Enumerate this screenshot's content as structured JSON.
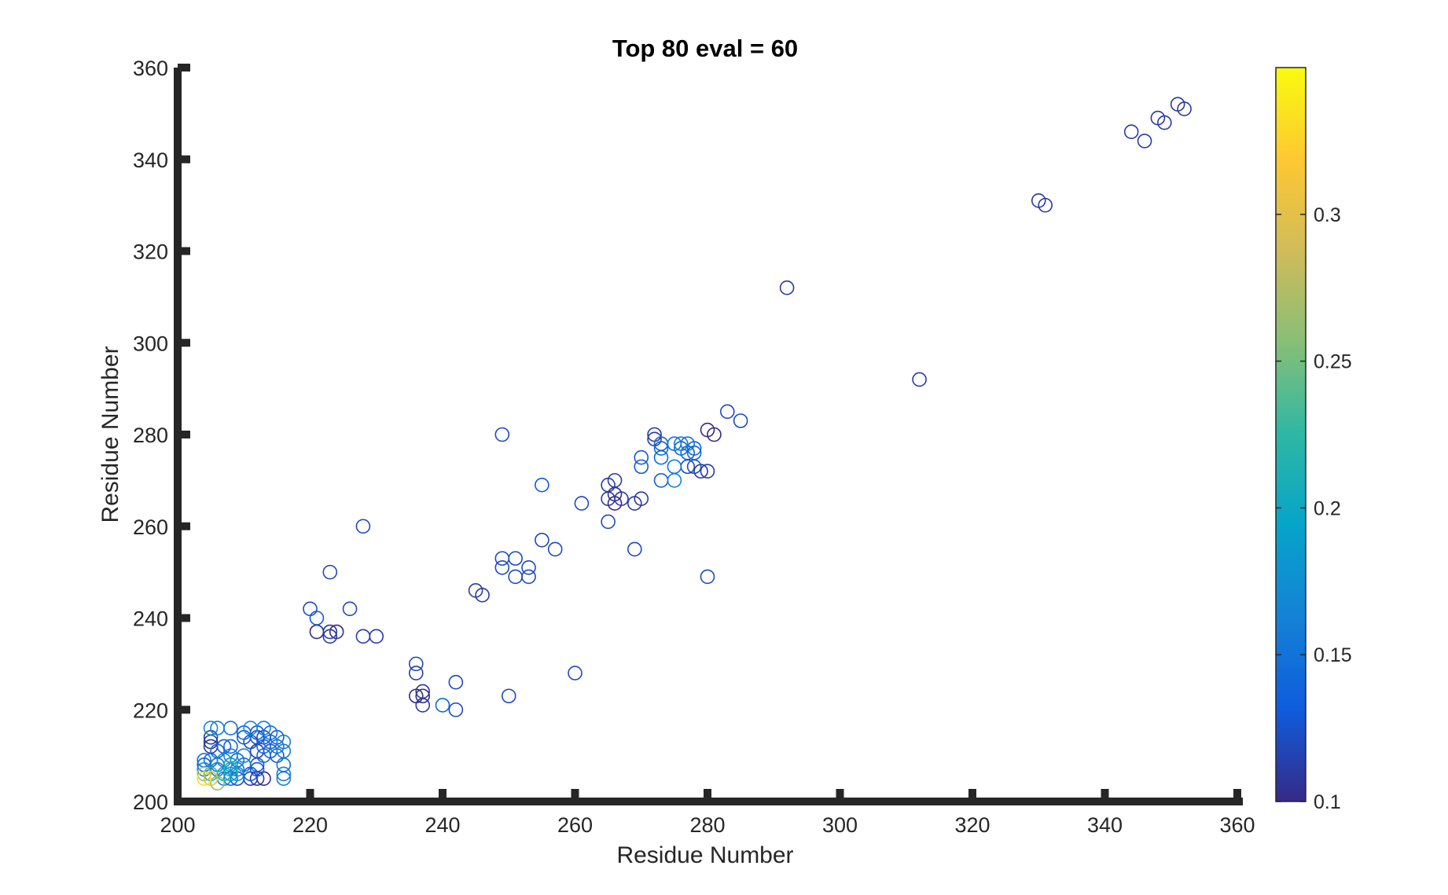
{
  "chart_data": {
    "type": "scatter",
    "title": "Top 80 eval = 60",
    "xlabel": "Residue Number",
    "ylabel": "Residue Number",
    "xlim": [
      200,
      360
    ],
    "ylim": [
      200,
      360
    ],
    "xticks": [
      200,
      220,
      240,
      260,
      280,
      300,
      320,
      340,
      360
    ],
    "yticks": [
      200,
      220,
      240,
      260,
      280,
      300,
      320,
      340,
      360
    ],
    "xtick_labels": [
      "200",
      "220",
      "240",
      "260",
      "280",
      "300",
      "320",
      "340",
      "360"
    ],
    "ytick_labels": [
      "200",
      "220",
      "240",
      "260",
      "280",
      "300",
      "320",
      "340",
      "360"
    ],
    "grid": false,
    "marker": "open-circle",
    "colormap": "parula",
    "colorbar": {
      "lim": [
        0.1,
        0.35
      ],
      "ticks": [
        0.1,
        0.15,
        0.2,
        0.25,
        0.3
      ],
      "tick_labels": [
        "0.1",
        "0.15",
        "0.2",
        "0.25",
        "0.3"
      ],
      "colors": [
        "#352a87",
        "#0f5cdd",
        "#1481d6",
        "#06a4ca",
        "#2eb7a4",
        "#87bf77",
        "#d1bb59",
        "#fec832",
        "#f9fb0e"
      ]
    },
    "points": [
      {
        "x": 351,
        "y": 352,
        "c": 0.11
      },
      {
        "x": 352,
        "y": 351,
        "c": 0.11
      },
      {
        "x": 348,
        "y": 349,
        "c": 0.11
      },
      {
        "x": 349,
        "y": 348,
        "c": 0.11
      },
      {
        "x": 344,
        "y": 346,
        "c": 0.11
      },
      {
        "x": 346,
        "y": 344,
        "c": 0.11
      },
      {
        "x": 330,
        "y": 331,
        "c": 0.11
      },
      {
        "x": 331,
        "y": 330,
        "c": 0.11
      },
      {
        "x": 292,
        "y": 312,
        "c": 0.11
      },
      {
        "x": 312,
        "y": 292,
        "c": 0.11
      },
      {
        "x": 283,
        "y": 285,
        "c": 0.12
      },
      {
        "x": 285,
        "y": 283,
        "c": 0.12
      },
      {
        "x": 280,
        "y": 281,
        "c": 0.1
      },
      {
        "x": 281,
        "y": 280,
        "c": 0.1
      },
      {
        "x": 249,
        "y": 280,
        "c": 0.12
      },
      {
        "x": 280,
        "y": 249,
        "c": 0.12
      },
      {
        "x": 228,
        "y": 260,
        "c": 0.12
      },
      {
        "x": 260,
        "y": 228,
        "c": 0.12
      },
      {
        "x": 272,
        "y": 280,
        "c": 0.11
      },
      {
        "x": 272,
        "y": 279,
        "c": 0.11
      },
      {
        "x": 273,
        "y": 278,
        "c": 0.14
      },
      {
        "x": 273,
        "y": 277,
        "c": 0.14
      },
      {
        "x": 275,
        "y": 278,
        "c": 0.15
      },
      {
        "x": 276,
        "y": 278,
        "c": 0.16
      },
      {
        "x": 277,
        "y": 278,
        "c": 0.15
      },
      {
        "x": 276,
        "y": 277,
        "c": 0.14
      },
      {
        "x": 278,
        "y": 277,
        "c": 0.14
      },
      {
        "x": 277,
        "y": 276,
        "c": 0.13
      },
      {
        "x": 278,
        "y": 276,
        "c": 0.14
      },
      {
        "x": 273,
        "y": 275,
        "c": 0.14
      },
      {
        "x": 270,
        "y": 275,
        "c": 0.13
      },
      {
        "x": 275,
        "y": 273,
        "c": 0.15
      },
      {
        "x": 277,
        "y": 273,
        "c": 0.12
      },
      {
        "x": 278,
        "y": 273,
        "c": 0.12
      },
      {
        "x": 270,
        "y": 273,
        "c": 0.13
      },
      {
        "x": 279,
        "y": 272,
        "c": 0.11
      },
      {
        "x": 280,
        "y": 272,
        "c": 0.11
      },
      {
        "x": 273,
        "y": 270,
        "c": 0.13
      },
      {
        "x": 275,
        "y": 270,
        "c": 0.16
      },
      {
        "x": 255,
        "y": 269,
        "c": 0.13
      },
      {
        "x": 265,
        "y": 269,
        "c": 0.11
      },
      {
        "x": 266,
        "y": 270,
        "c": 0.11
      },
      {
        "x": 266,
        "y": 267,
        "c": 0.1
      },
      {
        "x": 265,
        "y": 266,
        "c": 0.11
      },
      {
        "x": 267,
        "y": 266,
        "c": 0.11
      },
      {
        "x": 270,
        "y": 266,
        "c": 0.11
      },
      {
        "x": 266,
        "y": 265,
        "c": 0.1
      },
      {
        "x": 269,
        "y": 265,
        "c": 0.11
      },
      {
        "x": 261,
        "y": 265,
        "c": 0.12
      },
      {
        "x": 265,
        "y": 261,
        "c": 0.12
      },
      {
        "x": 255,
        "y": 257,
        "c": 0.12
      },
      {
        "x": 257,
        "y": 255,
        "c": 0.12
      },
      {
        "x": 269,
        "y": 255,
        "c": 0.12
      },
      {
        "x": 249,
        "y": 253,
        "c": 0.12
      },
      {
        "x": 251,
        "y": 253,
        "c": 0.12
      },
      {
        "x": 249,
        "y": 251,
        "c": 0.12
      },
      {
        "x": 253,
        "y": 251,
        "c": 0.12
      },
      {
        "x": 251,
        "y": 249,
        "c": 0.12
      },
      {
        "x": 253,
        "y": 249,
        "c": 0.12
      },
      {
        "x": 223,
        "y": 250,
        "c": 0.12
      },
      {
        "x": 250,
        "y": 223,
        "c": 0.12
      },
      {
        "x": 245,
        "y": 246,
        "c": 0.11
      },
      {
        "x": 246,
        "y": 245,
        "c": 0.11
      },
      {
        "x": 220,
        "y": 242,
        "c": 0.12
      },
      {
        "x": 226,
        "y": 242,
        "c": 0.12
      },
      {
        "x": 221,
        "y": 240,
        "c": 0.13
      },
      {
        "x": 221,
        "y": 237,
        "c": 0.1
      },
      {
        "x": 223,
        "y": 237,
        "c": 0.11
      },
      {
        "x": 224,
        "y": 237,
        "c": 0.1
      },
      {
        "x": 223,
        "y": 236,
        "c": 0.11
      },
      {
        "x": 228,
        "y": 236,
        "c": 0.11
      },
      {
        "x": 230,
        "y": 236,
        "c": 0.11
      },
      {
        "x": 236,
        "y": 230,
        "c": 0.12
      },
      {
        "x": 236,
        "y": 228,
        "c": 0.11
      },
      {
        "x": 242,
        "y": 226,
        "c": 0.12
      },
      {
        "x": 237,
        "y": 224,
        "c": 0.11
      },
      {
        "x": 236,
        "y": 223,
        "c": 0.1
      },
      {
        "x": 237,
        "y": 223,
        "c": 0.1
      },
      {
        "x": 237,
        "y": 221,
        "c": 0.11
      },
      {
        "x": 240,
        "y": 221,
        "c": 0.14
      },
      {
        "x": 242,
        "y": 220,
        "c": 0.12
      },
      {
        "x": 205,
        "y": 216,
        "c": 0.17
      },
      {
        "x": 206,
        "y": 216,
        "c": 0.16
      },
      {
        "x": 208,
        "y": 216,
        "c": 0.15
      },
      {
        "x": 211,
        "y": 216,
        "c": 0.17
      },
      {
        "x": 213,
        "y": 216,
        "c": 0.16
      },
      {
        "x": 210,
        "y": 215,
        "c": 0.14
      },
      {
        "x": 212,
        "y": 215,
        "c": 0.13
      },
      {
        "x": 214,
        "y": 215,
        "c": 0.15
      },
      {
        "x": 205,
        "y": 214,
        "c": 0.11
      },
      {
        "x": 210,
        "y": 214,
        "c": 0.13
      },
      {
        "x": 212,
        "y": 214,
        "c": 0.12
      },
      {
        "x": 213,
        "y": 214,
        "c": 0.12
      },
      {
        "x": 215,
        "y": 214,
        "c": 0.13
      },
      {
        "x": 216,
        "y": 213,
        "c": 0.16
      },
      {
        "x": 205,
        "y": 213,
        "c": 0.11
      },
      {
        "x": 211,
        "y": 213,
        "c": 0.12
      },
      {
        "x": 214,
        "y": 213,
        "c": 0.14
      },
      {
        "x": 215,
        "y": 212,
        "c": 0.15
      },
      {
        "x": 205,
        "y": 212,
        "c": 0.11
      },
      {
        "x": 207,
        "y": 212,
        "c": 0.13
      },
      {
        "x": 208,
        "y": 212,
        "c": 0.14
      },
      {
        "x": 213,
        "y": 212,
        "c": 0.14
      },
      {
        "x": 214,
        "y": 211,
        "c": 0.13
      },
      {
        "x": 216,
        "y": 211,
        "c": 0.16
      },
      {
        "x": 206,
        "y": 211,
        "c": 0.14
      },
      {
        "x": 212,
        "y": 211,
        "c": 0.11
      },
      {
        "x": 208,
        "y": 210,
        "c": 0.16
      },
      {
        "x": 210,
        "y": 210,
        "c": 0.16
      },
      {
        "x": 213,
        "y": 210,
        "c": 0.14
      },
      {
        "x": 215,
        "y": 210,
        "c": 0.13
      },
      {
        "x": 204,
        "y": 209,
        "c": 0.15
      },
      {
        "x": 205,
        "y": 209,
        "c": 0.14
      },
      {
        "x": 207,
        "y": 209,
        "c": 0.17
      },
      {
        "x": 209,
        "y": 209,
        "c": 0.14
      },
      {
        "x": 204,
        "y": 208,
        "c": 0.13
      },
      {
        "x": 206,
        "y": 208,
        "c": 0.15
      },
      {
        "x": 208,
        "y": 208,
        "c": 0.19
      },
      {
        "x": 210,
        "y": 208,
        "c": 0.15
      },
      {
        "x": 212,
        "y": 208,
        "c": 0.13
      },
      {
        "x": 216,
        "y": 208,
        "c": 0.15
      },
      {
        "x": 204,
        "y": 207,
        "c": 0.17
      },
      {
        "x": 206,
        "y": 207,
        "c": 0.16
      },
      {
        "x": 208,
        "y": 207,
        "c": 0.21
      },
      {
        "x": 209,
        "y": 207,
        "c": 0.16
      },
      {
        "x": 212,
        "y": 207,
        "c": 0.13
      },
      {
        "x": 204,
        "y": 206,
        "c": 0.27
      },
      {
        "x": 205,
        "y": 206,
        "c": 0.22
      },
      {
        "x": 207,
        "y": 206,
        "c": 0.2
      },
      {
        "x": 208,
        "y": 206,
        "c": 0.18
      },
      {
        "x": 209,
        "y": 206,
        "c": 0.17
      },
      {
        "x": 211,
        "y": 206,
        "c": 0.13
      },
      {
        "x": 216,
        "y": 206,
        "c": 0.16
      },
      {
        "x": 204,
        "y": 205,
        "c": 0.33
      },
      {
        "x": 205,
        "y": 205,
        "c": 0.3
      },
      {
        "x": 207,
        "y": 205,
        "c": 0.16
      },
      {
        "x": 208,
        "y": 205,
        "c": 0.14
      },
      {
        "x": 209,
        "y": 205,
        "c": 0.12
      },
      {
        "x": 211,
        "y": 205,
        "c": 0.11
      },
      {
        "x": 212,
        "y": 205,
        "c": 0.11
      },
      {
        "x": 213,
        "y": 205,
        "c": 0.1
      },
      {
        "x": 216,
        "y": 205,
        "c": 0.16
      },
      {
        "x": 206,
        "y": 204,
        "c": 0.26
      }
    ]
  }
}
